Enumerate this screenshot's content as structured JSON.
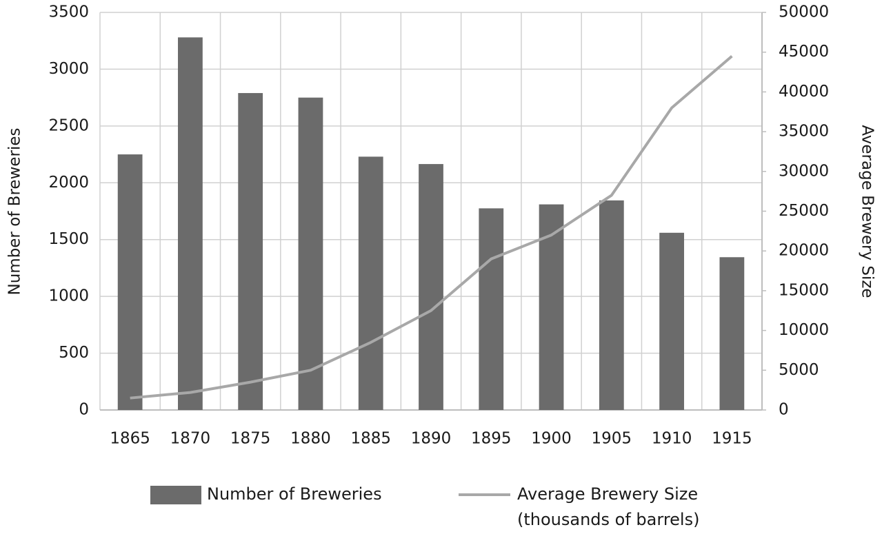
{
  "chart_data": {
    "type": "bar-line",
    "ylabel": "Number of Breweries",
    "y2label": "Average Brewery Size",
    "categories": [
      "1865",
      "1870",
      "1875",
      "1880",
      "1885",
      "1890",
      "1895",
      "1900",
      "1905",
      "1910",
      "1915"
    ],
    "series": [
      {
        "name": "Number of Breweries",
        "type": "bar",
        "color": "#6b6b6b",
        "values": [
          2250,
          3280,
          2790,
          2750,
          2230,
          2165,
          1775,
          1810,
          1845,
          1560,
          1345
        ]
      },
      {
        "name": "Average Brewery Size (thousands of barrels)",
        "type": "line",
        "axis": "y2",
        "color": "#a8a8a8",
        "values": [
          1500,
          2200,
          3500,
          5000,
          8500,
          12500,
          19000,
          22000,
          27000,
          38000,
          44500
        ]
      }
    ],
    "ylim": [
      0,
      3500
    ],
    "yticks": [
      0,
      500,
      1000,
      1500,
      2000,
      2500,
      3000,
      3500
    ],
    "y2lim": [
      0,
      50000
    ],
    "y2ticks": [
      0,
      5000,
      10000,
      15000,
      20000,
      25000,
      30000,
      35000,
      40000,
      45000,
      50000
    ],
    "grid": true
  }
}
